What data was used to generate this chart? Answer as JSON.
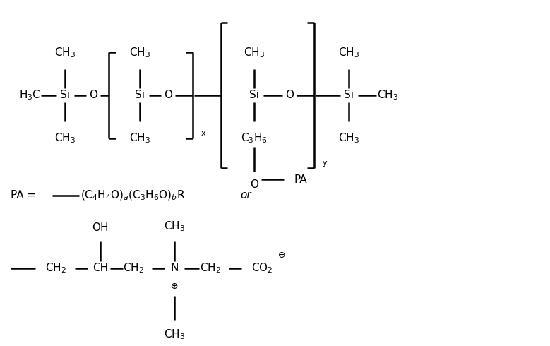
{
  "figsize": [
    7.79,
    4.9
  ],
  "dpi": 100,
  "bg_color": "#ffffff",
  "font_family": "Times New Roman",
  "font_size": 11,
  "font_size_small": 8,
  "line_color": "#000000",
  "line_width": 1.8,
  "xlim": [
    0,
    7.79
  ],
  "ylim": [
    0,
    4.9
  ]
}
